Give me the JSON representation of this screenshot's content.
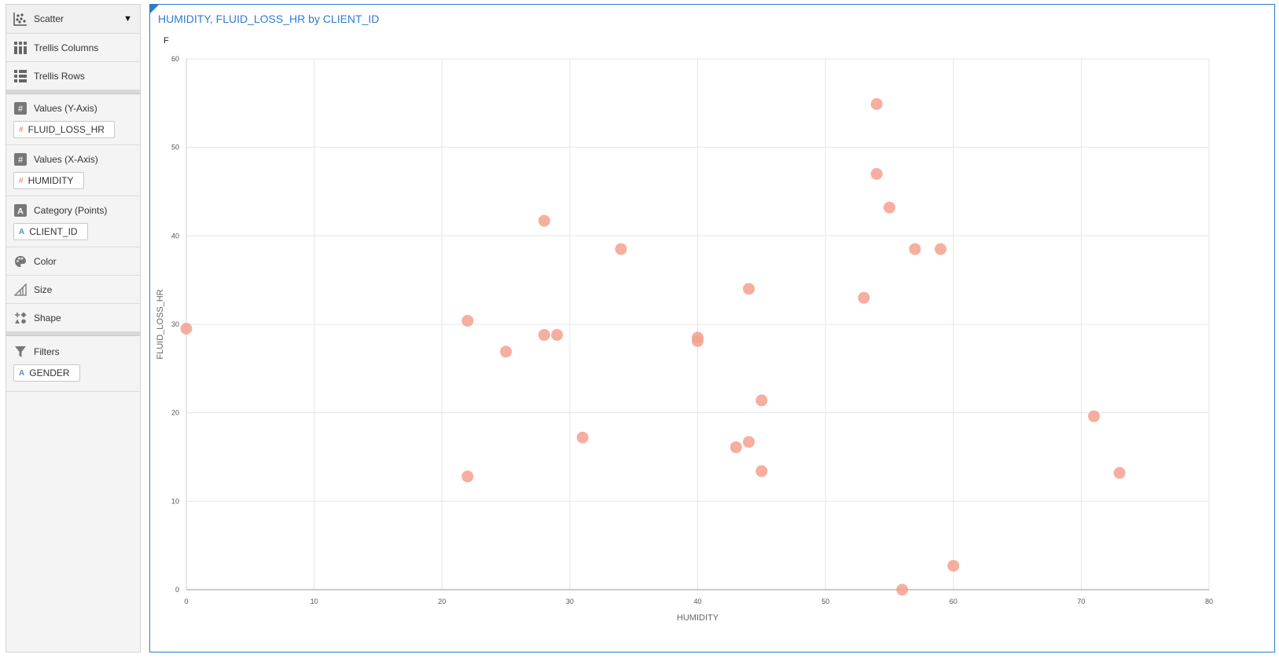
{
  "sidebar": {
    "chart_type": "Scatter",
    "trellis_columns": "Trellis Columns",
    "trellis_rows": "Trellis Rows",
    "y_values": {
      "label": "Values (Y-Axis)",
      "field": "FLUID_LOSS_HR"
    },
    "x_values": {
      "label": "Values (X-Axis)",
      "field": "HUMIDITY"
    },
    "category": {
      "label": "Category (Points)",
      "field": "CLIENT_ID"
    },
    "color": "Color",
    "size": "Size",
    "shape": "Shape",
    "filters": {
      "label": "Filters",
      "field": "GENDER"
    }
  },
  "chart": {
    "title": "HUMIDITY, FLUID_LOSS_HR by CLIENT_ID",
    "trellis_label": "F",
    "point_color": "#f4a08e"
  },
  "chart_data": {
    "type": "scatter",
    "title": "HUMIDITY, FLUID_LOSS_HR by CLIENT_ID",
    "xlabel": "HUMIDITY",
    "ylabel": "FLUID_LOSS_HR",
    "xlim": [
      0,
      80
    ],
    "ylim": [
      0,
      60
    ],
    "xticks": [
      0,
      10,
      20,
      30,
      40,
      50,
      60,
      70,
      80
    ],
    "yticks": [
      0,
      10,
      20,
      30,
      40,
      50,
      60
    ],
    "grid": true,
    "points": [
      {
        "x": 0,
        "y": 29.5
      },
      {
        "x": 22,
        "y": 30.4
      },
      {
        "x": 22,
        "y": 12.8
      },
      {
        "x": 25,
        "y": 26.9
      },
      {
        "x": 28,
        "y": 41.7
      },
      {
        "x": 28,
        "y": 28.8
      },
      {
        "x": 29,
        "y": 28.8
      },
      {
        "x": 31,
        "y": 17.2
      },
      {
        "x": 34,
        "y": 38.5
      },
      {
        "x": 40,
        "y": 28.5
      },
      {
        "x": 40,
        "y": 28.1
      },
      {
        "x": 43,
        "y": 16.1
      },
      {
        "x": 44,
        "y": 34
      },
      {
        "x": 44,
        "y": 16.7
      },
      {
        "x": 45,
        "y": 21.4
      },
      {
        "x": 45,
        "y": 13.4
      },
      {
        "x": 53,
        "y": 33
      },
      {
        "x": 54,
        "y": 54.9
      },
      {
        "x": 54,
        "y": 47
      },
      {
        "x": 55,
        "y": 43.2
      },
      {
        "x": 56,
        "y": 0
      },
      {
        "x": 57,
        "y": 38.5
      },
      {
        "x": 59,
        "y": 38.5
      },
      {
        "x": 60,
        "y": 2.7
      },
      {
        "x": 71,
        "y": 19.6
      },
      {
        "x": 73,
        "y": 13.2
      }
    ]
  }
}
